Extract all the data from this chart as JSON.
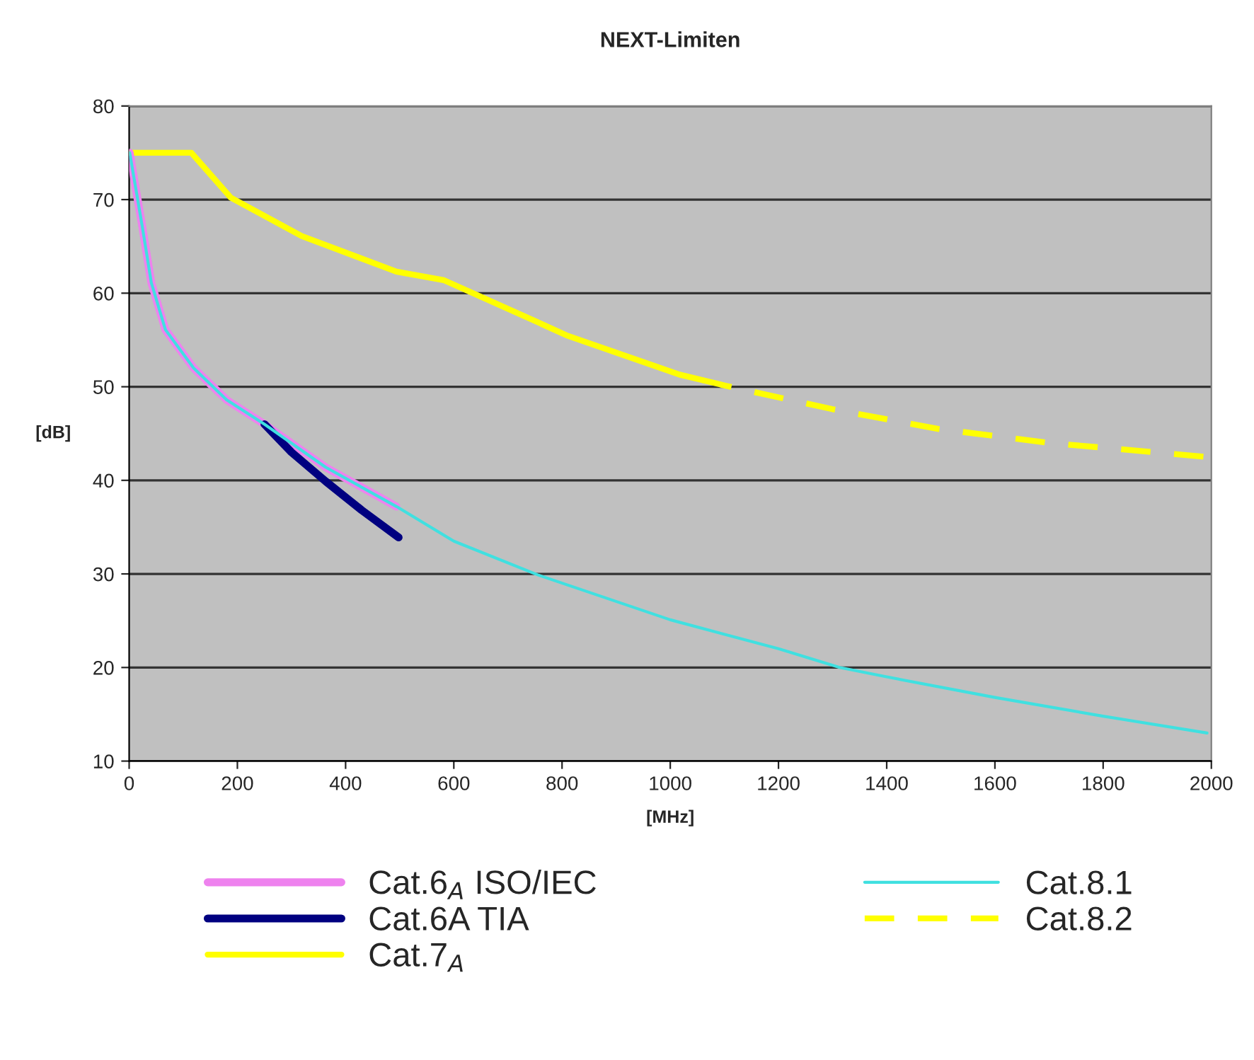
{
  "chart_data": {
    "type": "line",
    "title": "NEXT-Limiten",
    "xlabel": "[MHz]",
    "ylabel": "[dB]",
    "xlim": [
      0,
      2000
    ],
    "ylim": [
      10,
      80
    ],
    "xticks": [
      0,
      200,
      400,
      600,
      800,
      1000,
      1200,
      1400,
      1600,
      1800,
      2000
    ],
    "yticks": [
      10,
      20,
      30,
      40,
      50,
      60,
      70,
      80
    ],
    "grid": "y",
    "legend": "bottom",
    "marker": "none",
    "series": [
      {
        "name": "Cat.6$_{A}$ ISO/IEC",
        "color": "#ee82ee",
        "x": [
          1,
          24,
          41,
          67,
          119,
          180,
          250,
          363,
          494
        ],
        "values": [
          75,
          67.2,
          61.1,
          56.1,
          52.0,
          48.6,
          46.0,
          41.4,
          37.2
        ]
      },
      {
        "name": "Cat.6A TIA",
        "color": "#000080",
        "x": [
          250,
          300,
          363,
          430,
          498
        ],
        "values": [
          46.0,
          43.0,
          39.9,
          36.8,
          33.9
        ]
      },
      {
        "name": "Cat.7$_{A}$",
        "color": "#ffff00",
        "x": [
          0,
          115,
          188,
          319,
          494,
          581,
          755,
          808,
          1017,
          1060
        ],
        "values": [
          75,
          75,
          70.2,
          66.1,
          62.3,
          61.4,
          56.9,
          55.5,
          51.3,
          50.7
        ]
      },
      {
        "name": "Cat.8.1",
        "color": "#40e0e0",
        "x": [
          1,
          24,
          41,
          67,
          119,
          180,
          250,
          363,
          494,
          600,
          755,
          1000,
          1200,
          1313,
          1400,
          1600,
          1800,
          1992
        ],
        "values": [
          75,
          67.2,
          61.1,
          56.1,
          52.0,
          48.6,
          46.0,
          41.4,
          37.2,
          33.5,
          29.9,
          25.1,
          22.0,
          20.0,
          19.0,
          16.8,
          14.8,
          13.0
        ]
      },
      {
        "name": "Cat.8.2",
        "color": "#ffff00",
        "line_style": "dashed",
        "x": [
          1060,
          1103,
          1300,
          1495,
          1700,
          1992
        ],
        "values": [
          50.7,
          50.1,
          47.6,
          45.5,
          44.0,
          42.5
        ]
      }
    ]
  }
}
